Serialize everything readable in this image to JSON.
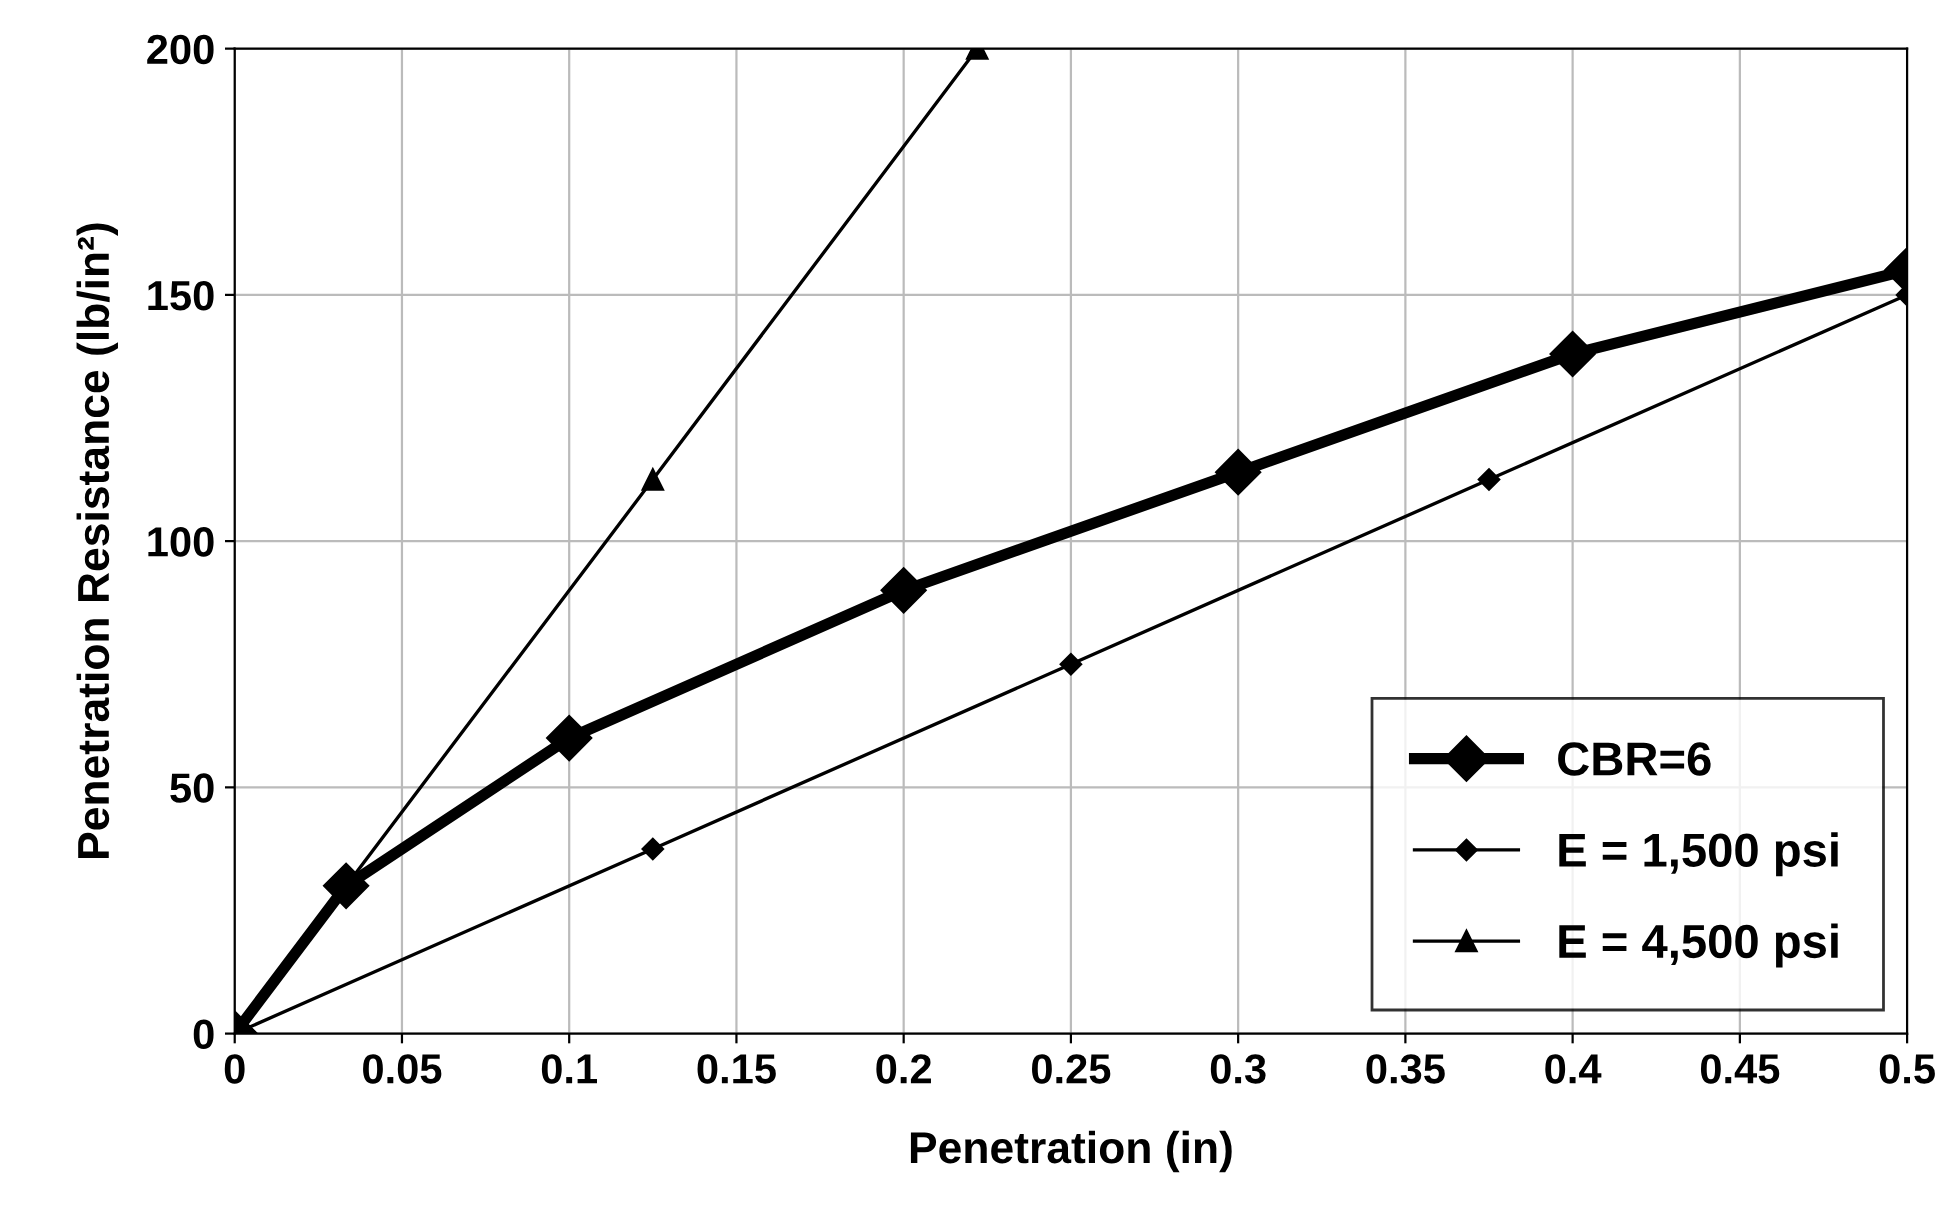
{
  "chart_data": {
    "type": "line",
    "xlabel": "Penetration (in)",
    "ylabel": "Penetration Resistance (lb/in²)",
    "series": [
      {
        "name": "CBR=6",
        "color": "#000000",
        "marker": "diamond",
        "x": [
          0,
          0.0333,
          0.1,
          0.2,
          0.3,
          0.4,
          0.5
        ],
        "values": [
          0,
          30,
          60,
          90,
          114,
          138,
          155
        ]
      },
      {
        "name": "E = 1,500 psi",
        "color": "#000000",
        "marker": "diamond",
        "x": [
          0,
          0.125,
          0.25,
          0.375,
          0.5
        ],
        "values": [
          0,
          37.5,
          75,
          112.5,
          150
        ]
      },
      {
        "name": "E = 4,500 psi",
        "color": "#000000",
        "marker": "triangle",
        "x": [
          0,
          0.125,
          0.222
        ],
        "values": [
          0,
          112.5,
          200
        ]
      }
    ],
    "xlim": [
      0,
      0.5
    ],
    "xticks": [
      0,
      0.05,
      0.1,
      0.15,
      0.2,
      0.25,
      0.3,
      0.35,
      0.4,
      0.45,
      0.5
    ],
    "ylim": [
      0,
      200
    ],
    "yticks": [
      0,
      50,
      100,
      150,
      200
    ],
    "grid": true,
    "legend": "bottom right",
    "line_style": "solid"
  }
}
